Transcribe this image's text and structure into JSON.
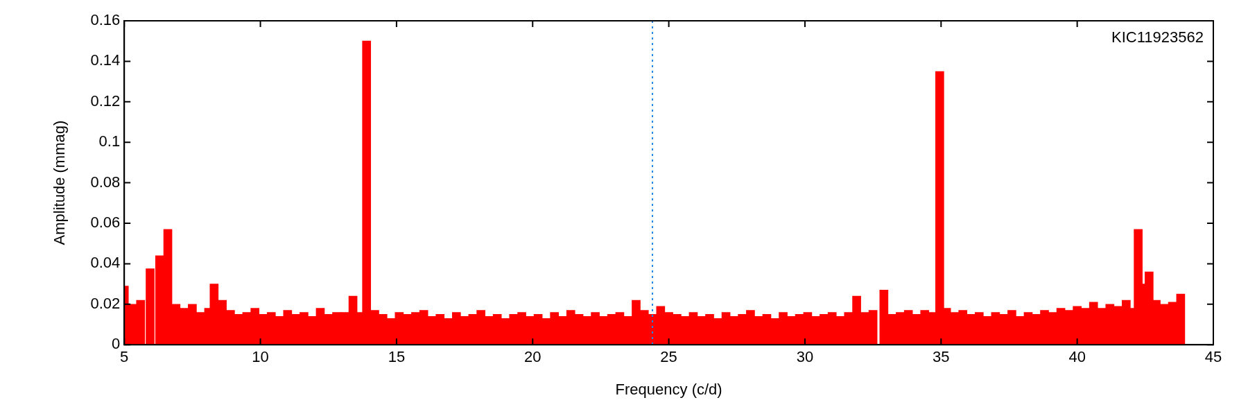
{
  "chart_data": {
    "type": "bar",
    "xlabel": "Frequency (c/d)",
    "ylabel": "Amplitude (mmag)",
    "annotations": [
      "KIC11923562"
    ],
    "x": [
      5.0,
      5.3,
      5.6,
      5.95,
      6.3,
      6.6,
      6.9,
      7.2,
      7.5,
      7.8,
      8.1,
      8.3,
      8.6,
      8.9,
      9.2,
      9.5,
      9.8,
      10.1,
      10.4,
      10.7,
      11.0,
      11.3,
      11.6,
      11.9,
      12.2,
      12.5,
      12.8,
      13.1,
      13.4,
      13.7,
      13.9,
      14.2,
      14.5,
      14.8,
      15.1,
      15.4,
      15.7,
      16.0,
      16.3,
      16.6,
      16.9,
      17.2,
      17.5,
      17.8,
      18.1,
      18.4,
      18.7,
      19.0,
      19.3,
      19.6,
      19.9,
      20.2,
      20.5,
      20.8,
      21.1,
      21.4,
      21.7,
      22.0,
      22.3,
      22.6,
      22.9,
      23.2,
      23.5,
      23.8,
      24.1,
      24.4,
      24.7,
      25.0,
      25.3,
      25.6,
      25.9,
      26.2,
      26.5,
      26.8,
      27.1,
      27.4,
      27.7,
      28.0,
      28.3,
      28.6,
      28.9,
      29.2,
      29.5,
      29.8,
      30.1,
      30.4,
      30.7,
      31.0,
      31.3,
      31.6,
      31.9,
      32.2,
      32.5,
      32.9,
      33.2,
      33.5,
      33.8,
      34.1,
      34.4,
      34.7,
      34.95,
      35.2,
      35.5,
      35.8,
      36.1,
      36.4,
      36.7,
      37.0,
      37.3,
      37.6,
      37.9,
      38.2,
      38.5,
      38.8,
      39.1,
      39.4,
      39.7,
      40.0,
      40.3,
      40.6,
      40.9,
      41.2,
      41.5,
      41.8,
      42.0,
      42.24,
      42.4,
      42.64,
      42.9,
      43.2,
      43.5,
      43.8
    ],
    "series": [
      {
        "color": "#ff0000",
        "values": [
          0.029,
          0.02,
          0.022,
          0.0375,
          0.044,
          0.057,
          0.02,
          0.018,
          0.02,
          0.016,
          0.018,
          0.03,
          0.022,
          0.017,
          0.015,
          0.016,
          0.018,
          0.015,
          0.016,
          0.014,
          0.017,
          0.015,
          0.016,
          0.014,
          0.018,
          0.015,
          0.016,
          0.016,
          0.024,
          0.016,
          0.15,
          0.017,
          0.015,
          0.013,
          0.016,
          0.015,
          0.016,
          0.017,
          0.014,
          0.015,
          0.013,
          0.016,
          0.014,
          0.015,
          0.017,
          0.014,
          0.015,
          0.013,
          0.015,
          0.016,
          0.014,
          0.015,
          0.013,
          0.016,
          0.014,
          0.017,
          0.015,
          0.014,
          0.016,
          0.014,
          0.015,
          0.016,
          0.014,
          0.022,
          0.017,
          0.015,
          0.019,
          0.016,
          0.015,
          0.014,
          0.016,
          0.014,
          0.015,
          0.013,
          0.016,
          0.014,
          0.015,
          0.017,
          0.014,
          0.015,
          0.013,
          0.016,
          0.014,
          0.015,
          0.016,
          0.014,
          0.015,
          0.016,
          0.014,
          0.016,
          0.024,
          0.016,
          0.017,
          0.027,
          0.015,
          0.016,
          0.017,
          0.015,
          0.017,
          0.016,
          0.135,
          0.018,
          0.016,
          0.017,
          0.015,
          0.016,
          0.014,
          0.016,
          0.015,
          0.017,
          0.014,
          0.016,
          0.015,
          0.017,
          0.016,
          0.018,
          0.017,
          0.019,
          0.018,
          0.021,
          0.018,
          0.02,
          0.019,
          0.022,
          0.018,
          0.057,
          0.03,
          0.036,
          0.022,
          0.02,
          0.021,
          0.025
        ]
      }
    ],
    "xlim": [
      5,
      45
    ],
    "xticks": [
      5,
      10,
      15,
      20,
      25,
      30,
      35,
      40,
      45
    ],
    "ylim": [
      0,
      0.16
    ],
    "yticks": [
      0,
      0.02,
      0.04,
      0.06,
      0.08,
      0.1,
      0.12,
      0.14,
      0.16
    ],
    "ref_lines": [
      {
        "axis": "x",
        "value": 24.4,
        "color": "#1e88e5",
        "line_style": "dotted"
      }
    ],
    "legend": false
  }
}
